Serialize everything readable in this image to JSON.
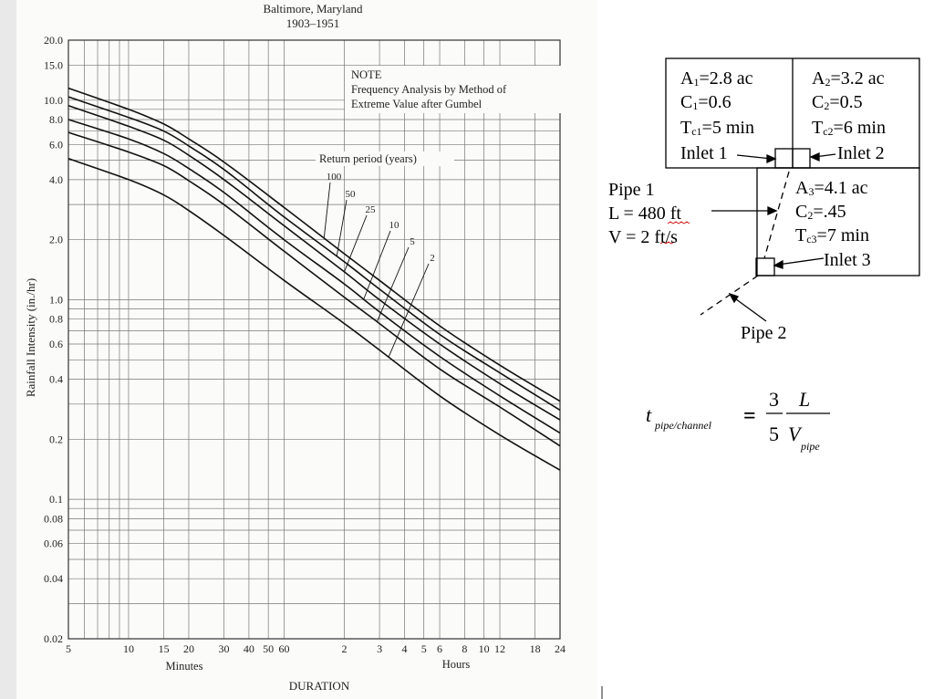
{
  "chart_data": {
    "type": "line",
    "title": "Baltimore, Maryland",
    "subtitle": "1903–1951",
    "note_lines": [
      "NOTE",
      "Frequency Analysis by Method of",
      "Extreme Value after Gumbel"
    ],
    "legend_title": "Return period (years)",
    "xlabel": "DURATION",
    "xlabel_minutes": "Minutes",
    "xlabel_hours": "Hours",
    "ylabel": "Rainfall Intensity (in./hr)",
    "x_scale": "log",
    "y_scale": "log",
    "xlim_minutes": [
      5,
      1440
    ],
    "ylim": [
      0.02,
      20
    ],
    "grid": true,
    "x_ticks": [
      {
        "min": 5,
        "label": "5"
      },
      {
        "min": 10,
        "label": "10"
      },
      {
        "min": 15,
        "label": "15"
      },
      {
        "min": 20,
        "label": "20"
      },
      {
        "min": 30,
        "label": "30"
      },
      {
        "min": 40,
        "label": "40"
      },
      {
        "min": 50,
        "label": "50"
      },
      {
        "min": 60,
        "label": "60"
      },
      {
        "min": 120,
        "label": "2"
      },
      {
        "min": 180,
        "label": "3"
      },
      {
        "min": 240,
        "label": "4"
      },
      {
        "min": 300,
        "label": "5"
      },
      {
        "min": 360,
        "label": "6"
      },
      {
        "min": 480,
        "label": "8"
      },
      {
        "min": 600,
        "label": "10"
      },
      {
        "min": 720,
        "label": "12"
      },
      {
        "min": 1080,
        "label": "18"
      },
      {
        "min": 1440,
        "label": "24"
      }
    ],
    "y_ticks": [
      {
        "v": 20,
        "label": "20.0"
      },
      {
        "v": 15,
        "label": "15.0"
      },
      {
        "v": 10,
        "label": "10.0"
      },
      {
        "v": 8,
        "label": "8.0"
      },
      {
        "v": 6,
        "label": "6.0"
      },
      {
        "v": 4,
        "label": "4.0"
      },
      {
        "v": 2,
        "label": "2.0"
      },
      {
        "v": 1,
        "label": "1.0"
      },
      {
        "v": 0.8,
        "label": "0.8"
      },
      {
        "v": 0.6,
        "label": "0.6"
      },
      {
        "v": 0.4,
        "label": "0.4"
      },
      {
        "v": 0.2,
        "label": "0.2"
      },
      {
        "v": 0.1,
        "label": "0.1"
      },
      {
        "v": 0.08,
        "label": "0.08"
      },
      {
        "v": 0.06,
        "label": "0.06"
      },
      {
        "v": 0.04,
        "label": "0.04"
      },
      {
        "v": 0.02,
        "label": "0.02"
      }
    ],
    "x": [
      5,
      10,
      15,
      20,
      30,
      60,
      120,
      180,
      360,
      720,
      1440
    ],
    "series": [
      {
        "name": "100",
        "values": [
          11.5,
          9.0,
          7.6,
          6.4,
          4.9,
          2.9,
          1.7,
          1.25,
          0.74,
          0.47,
          0.31
        ]
      },
      {
        "name": "50",
        "values": [
          10.4,
          8.2,
          7.0,
          5.9,
          4.5,
          2.6,
          1.55,
          1.13,
          0.67,
          0.43,
          0.28
        ]
      },
      {
        "name": "25",
        "values": [
          9.4,
          7.4,
          6.3,
          5.3,
          4.0,
          2.35,
          1.38,
          1.0,
          0.6,
          0.38,
          0.25
        ]
      },
      {
        "name": "10",
        "values": [
          8.0,
          6.4,
          5.4,
          4.55,
          3.45,
          2.0,
          1.2,
          0.87,
          0.52,
          0.33,
          0.215
        ]
      },
      {
        "name": "5",
        "values": [
          6.9,
          5.5,
          4.7,
          3.95,
          3.0,
          1.75,
          1.03,
          0.76,
          0.45,
          0.29,
          0.185
        ]
      },
      {
        "name": "2",
        "values": [
          5.1,
          4.0,
          3.35,
          2.8,
          2.1,
          1.25,
          0.76,
          0.56,
          0.33,
          0.21,
          0.14
        ]
      }
    ]
  },
  "diagram": {
    "area1": {
      "lines": [
        {
          "a": "A",
          "s": "1",
          "b": "=2.8 ac"
        },
        {
          "a": "C",
          "s": "1",
          "b": "=0.6"
        },
        {
          "a": "T",
          "s": "c1",
          "b": "=5 min"
        }
      ]
    },
    "area2": {
      "lines": [
        {
          "a": "A",
          "s": "2",
          "b": "=3.2 ac"
        },
        {
          "a": "C",
          "s": "2",
          "b": "=0.5"
        },
        {
          "a": "T",
          "s": "c2",
          "b": "=6 min"
        }
      ]
    },
    "area3": {
      "lines": [
        {
          "a": "A",
          "s": "3",
          "b": "=4.1 ac"
        },
        {
          "a": "C",
          "s": "2",
          "b": "=.45"
        },
        {
          "a": "T",
          "s": "c3",
          "b": "=7 min"
        }
      ]
    },
    "inlet1": "Inlet 1",
    "inlet2": "Inlet 2",
    "inlet3": "Inlet 3",
    "pipe1": [
      "Pipe 1",
      "L = 480 ft",
      "V = 2 ft/s"
    ],
    "pipe2": "Pipe 2",
    "formula": {
      "t": "t",
      "t_sub": "pipe/channel",
      "eq": "=",
      "num": "3",
      "den": "5",
      "L": "L",
      "V": "V",
      "V_sub": "pipe"
    }
  }
}
